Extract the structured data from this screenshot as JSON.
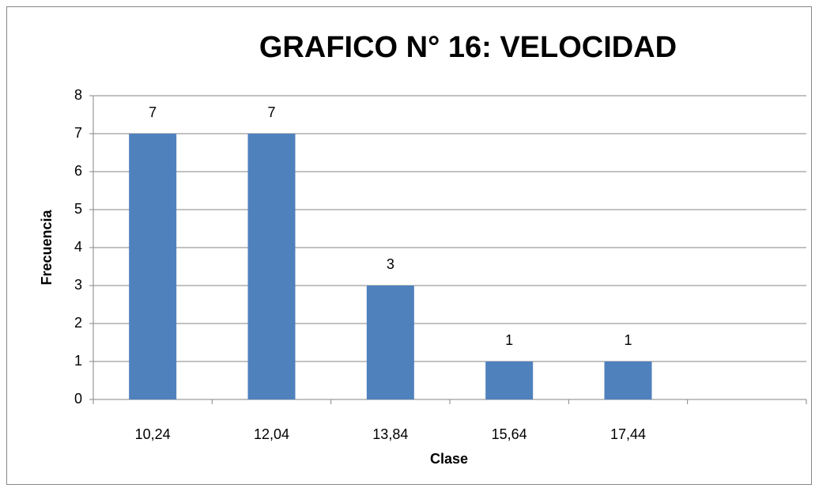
{
  "chart_data": {
    "type": "bar",
    "title": "GRAFICO N° 16: VELOCIDAD",
    "x_label": "Clase",
    "y_label": "Frecuencia",
    "categories": [
      "10,24",
      "12,04",
      "13,84",
      "15,64",
      "17,44",
      null
    ],
    "values": [
      7,
      7,
      3,
      1,
      1,
      null
    ],
    "color": "#4f81bd",
    "ylim": [
      0,
      8
    ],
    "yticks": [
      0,
      1,
      2,
      3,
      4,
      5,
      6,
      7,
      8
    ],
    "grid": true
  }
}
